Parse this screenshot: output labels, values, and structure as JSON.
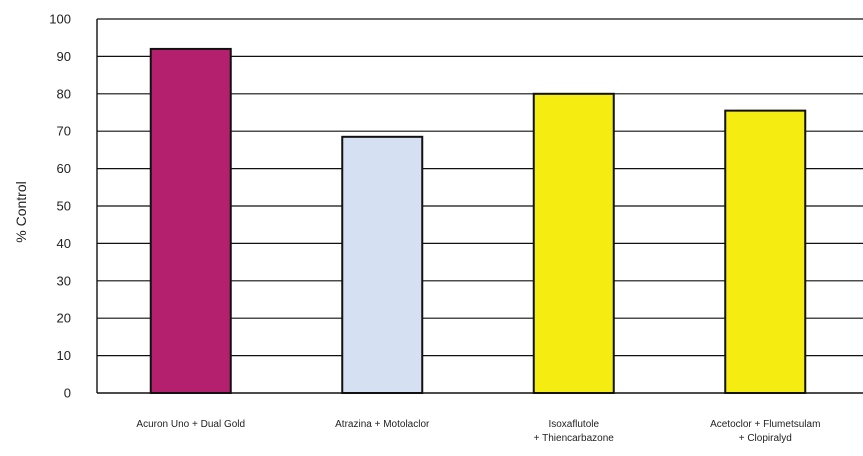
{
  "chart_data": {
    "type": "bar",
    "ylabel": "% Control",
    "ylim": [
      0,
      100
    ],
    "yticks": [
      0,
      10,
      20,
      30,
      40,
      50,
      60,
      70,
      80,
      90,
      100
    ],
    "grid": true,
    "categories": [
      [
        "Acuron Uno + Dual Gold"
      ],
      [
        "Atrazina + Motolaclor"
      ],
      [
        "Isoxaflutole",
        "+ Thiencarbazone"
      ],
      [
        "Acetoclor + Flumetsulam",
        "+ Clopiralyd"
      ]
    ],
    "values": [
      92,
      68.5,
      80,
      75.5
    ],
    "colors": [
      "#b5206e",
      "#d6e0f3",
      "#f5ec12",
      "#f5ec12"
    ],
    "bar_outline": "#111111",
    "grid_color": "#111111"
  }
}
